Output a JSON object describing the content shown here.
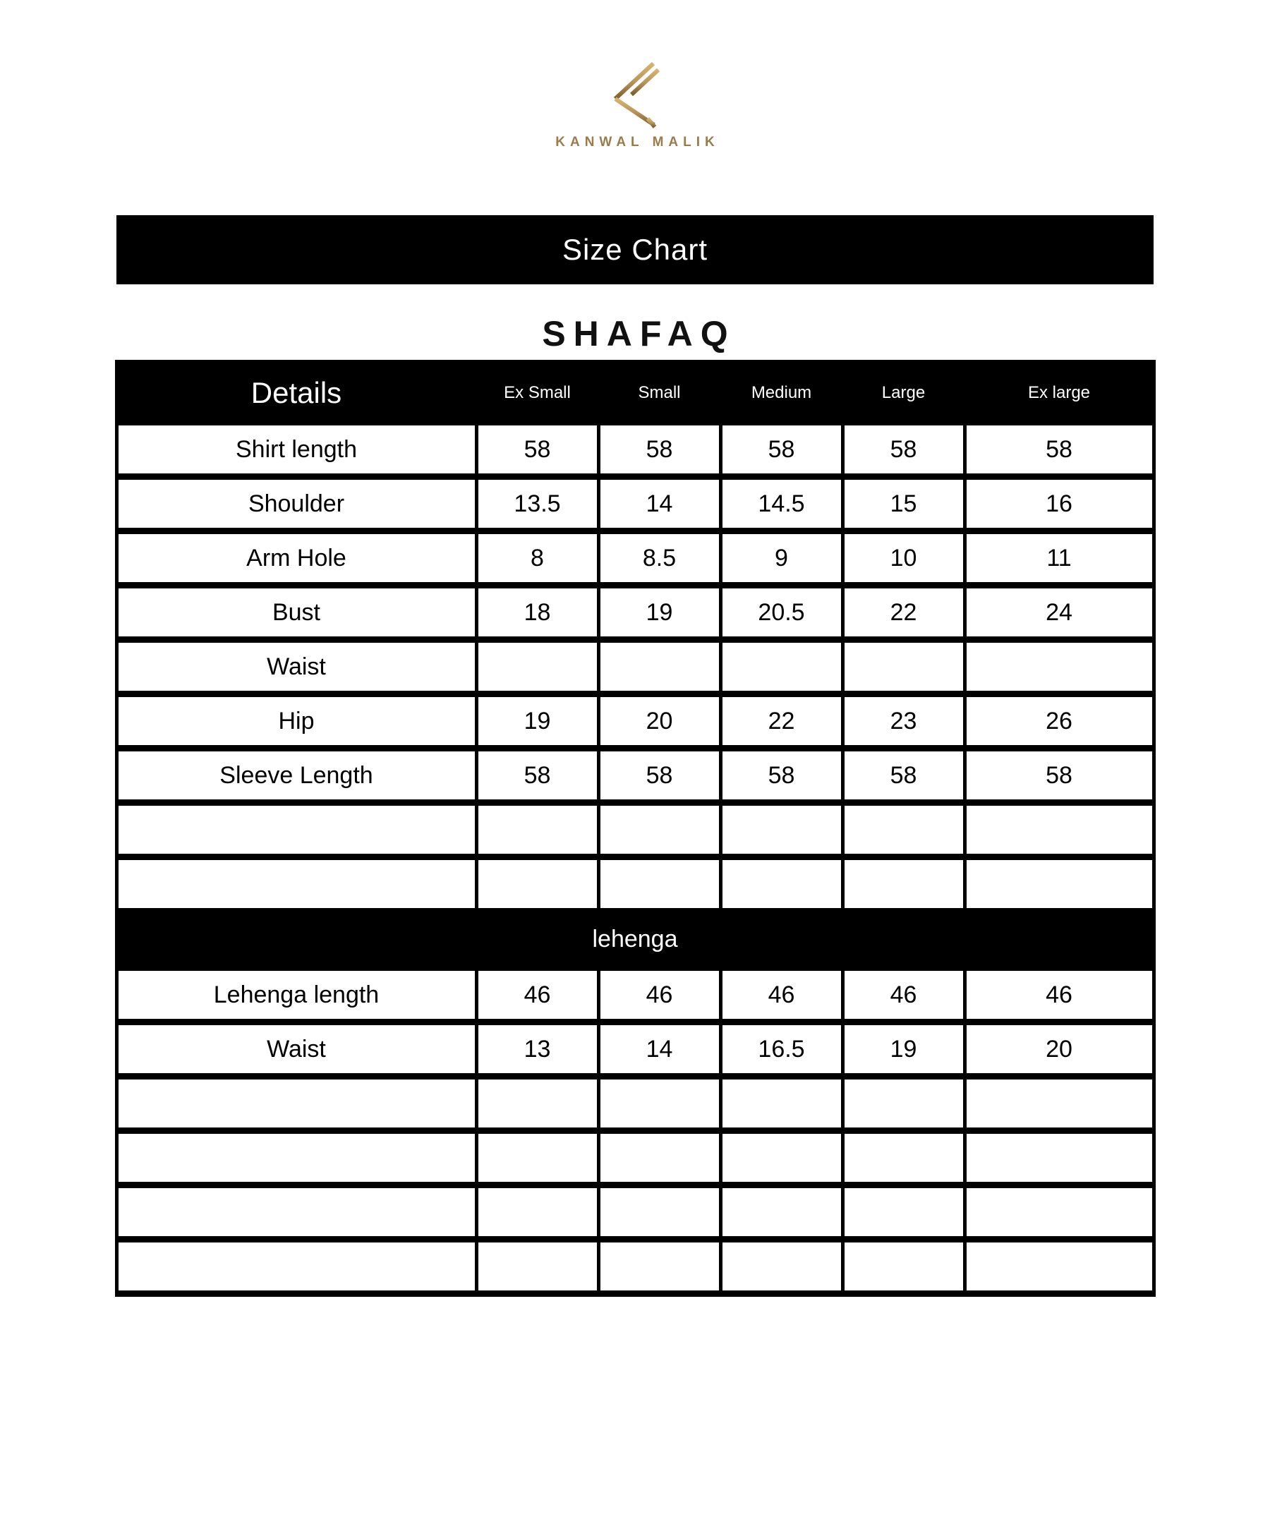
{
  "brand": {
    "name": "KANWAL MALIK",
    "logo_icon": "kanwal-malik-k-monogram"
  },
  "title_bar": {
    "label": "Size Chart"
  },
  "product_name": "SHAFAQ",
  "table": {
    "columns": [
      "Details",
      "Ex Small",
      "Small",
      "Medium",
      "Large",
      "Ex large"
    ],
    "shirt_rows": [
      {
        "label": "Shirt length",
        "values": [
          "58",
          "58",
          "58",
          "58",
          "58"
        ]
      },
      {
        "label": "Shoulder",
        "values": [
          "13.5",
          "14",
          "14.5",
          "15",
          "16"
        ]
      },
      {
        "label": "Arm Hole",
        "values": [
          "8",
          "8.5",
          "9",
          "10",
          "11"
        ]
      },
      {
        "label": "Bust",
        "values": [
          "18",
          "19",
          "20.5",
          "22",
          "24"
        ]
      },
      {
        "label": "Waist",
        "values": [
          "",
          "",
          "",
          "",
          ""
        ]
      },
      {
        "label": "Hip",
        "values": [
          "19",
          "20",
          "22",
          "23",
          "26"
        ]
      },
      {
        "label": "Sleeve Length",
        "values": [
          "58",
          "58",
          "58",
          "58",
          "58"
        ]
      },
      {
        "label": "",
        "values": [
          "",
          "",
          "",
          "",
          ""
        ]
      },
      {
        "label": "",
        "values": [
          "",
          "",
          "",
          "",
          ""
        ]
      }
    ],
    "section_banner": "lehenga",
    "lehenga_rows": [
      {
        "label": "Lehenga length",
        "values": [
          "46",
          "46",
          "46",
          "46",
          "46"
        ]
      },
      {
        "label": "Waist",
        "values": [
          "13",
          "14",
          "16.5",
          "19",
          "20"
        ]
      },
      {
        "label": "",
        "values": [
          "",
          "",
          "",
          "",
          ""
        ]
      },
      {
        "label": "",
        "values": [
          "",
          "",
          "",
          "",
          ""
        ]
      },
      {
        "label": "",
        "values": [
          "",
          "",
          "",
          "",
          ""
        ]
      },
      {
        "label": "",
        "values": [
          "",
          "",
          "",
          "",
          ""
        ]
      }
    ]
  },
  "colors": {
    "gold_light": "#d7b46e",
    "gold_dark": "#7c5e29",
    "gold_text": "#9a7b49",
    "banner_bg": "#000000",
    "text": "#000000"
  }
}
